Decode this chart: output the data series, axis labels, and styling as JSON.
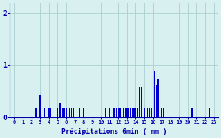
{
  "xlabel": "Précipitations 6min ( mm )",
  "bar_color": "#0000cc",
  "bg_color": "#d8f0f0",
  "grid_color": "#aacfcf",
  "text_color": "#0000aa",
  "ylim": [
    0,
    2.2
  ],
  "yticks": [
    0,
    1,
    2
  ],
  "xlim": [
    -0.5,
    23.5
  ],
  "figsize": [
    3.2,
    2.0
  ],
  "dpi": 100,
  "bars": [
    [
      2.5,
      0.18
    ],
    [
      3.0,
      0.42
    ],
    [
      3.5,
      0.18
    ],
    [
      4.0,
      0.18
    ],
    [
      4.2,
      0.18
    ],
    [
      5.0,
      0.18
    ],
    [
      5.3,
      0.28
    ],
    [
      5.6,
      0.18
    ],
    [
      5.8,
      0.18
    ],
    [
      6.0,
      0.18
    ],
    [
      6.2,
      0.18
    ],
    [
      6.4,
      0.18
    ],
    [
      6.6,
      0.18
    ],
    [
      6.8,
      0.18
    ],
    [
      7.0,
      0.18
    ],
    [
      7.5,
      0.18
    ],
    [
      8.0,
      0.18
    ],
    [
      10.5,
      0.18
    ],
    [
      11.0,
      0.18
    ],
    [
      11.5,
      0.18
    ],
    [
      11.8,
      0.18
    ],
    [
      12.0,
      0.18
    ],
    [
      12.2,
      0.18
    ],
    [
      12.4,
      0.18
    ],
    [
      12.6,
      0.18
    ],
    [
      12.8,
      0.18
    ],
    [
      13.0,
      0.18
    ],
    [
      13.2,
      0.18
    ],
    [
      13.4,
      0.18
    ],
    [
      13.6,
      0.18
    ],
    [
      13.8,
      0.18
    ],
    [
      14.0,
      0.18
    ],
    [
      14.2,
      0.18
    ],
    [
      14.4,
      0.58
    ],
    [
      14.7,
      0.58
    ],
    [
      15.0,
      0.18
    ],
    [
      15.2,
      0.18
    ],
    [
      15.4,
      0.18
    ],
    [
      15.6,
      0.18
    ],
    [
      15.8,
      0.18
    ],
    [
      16.0,
      1.05
    ],
    [
      16.2,
      0.88
    ],
    [
      16.4,
      0.62
    ],
    [
      16.6,
      0.72
    ],
    [
      16.8,
      0.55
    ],
    [
      17.0,
      0.18
    ],
    [
      17.2,
      0.18
    ],
    [
      17.5,
      0.18
    ],
    [
      20.5,
      0.18
    ],
    [
      22.5,
      0.18
    ]
  ]
}
